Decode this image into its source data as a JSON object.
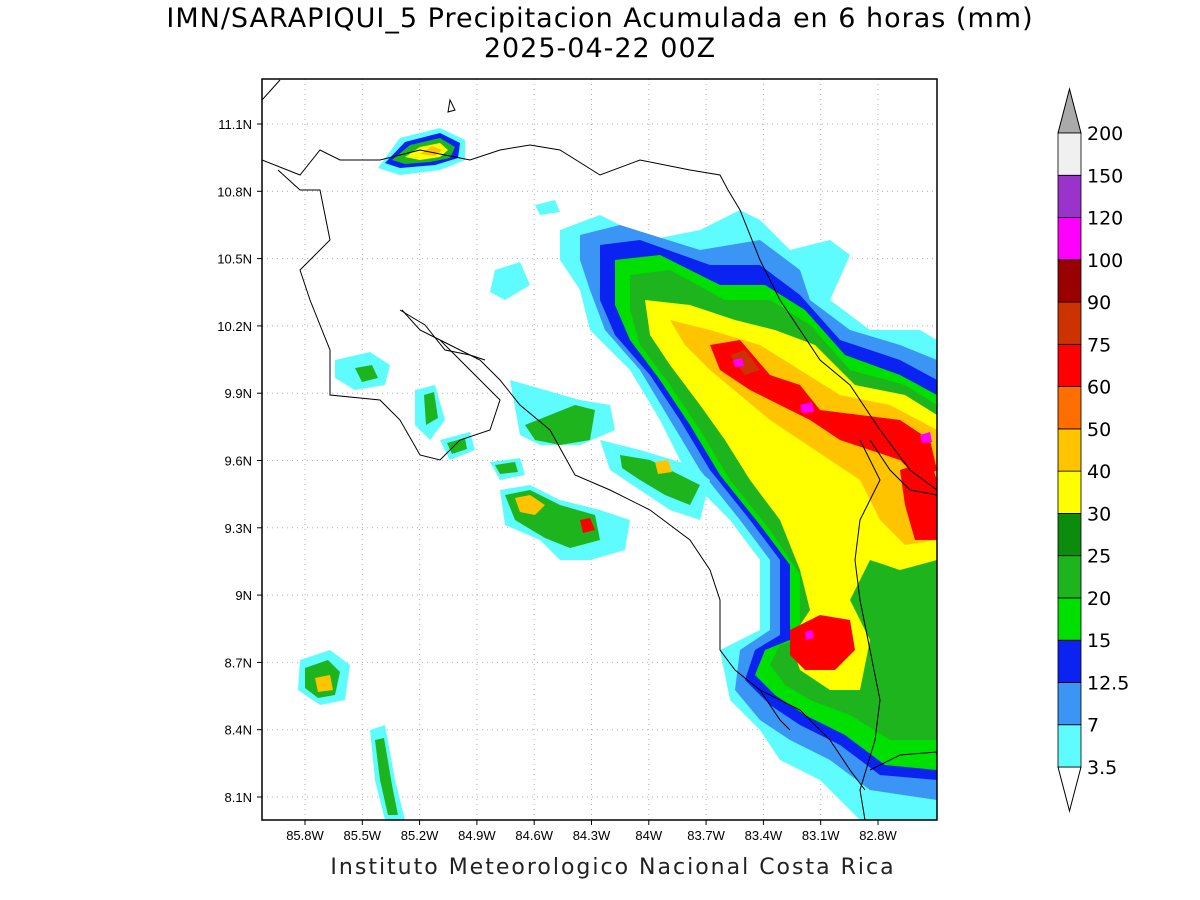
{
  "title_line1": "IMN/SARAPIQUI_5 Precipitacion Acumulada en 6 horas (mm)",
  "title_line2": "2025-04-22 00Z",
  "footer": "Instituto Meteorologico Nacional Costa Rica",
  "map": {
    "region": "Costa Rica",
    "variable": "6-hour accumulated precipitation",
    "units": "mm",
    "lat_range": [
      8.0,
      11.25
    ],
    "lon_range": [
      -85.95,
      -82.95
    ],
    "lat_ticks": [
      "11.1N",
      "10.8N",
      "10.5N",
      "10.2N",
      "9.9N",
      "9.6N",
      "9.3N",
      "9N",
      "8.7N",
      "8.4N",
      "8.1N"
    ],
    "lon_ticks": [
      "85.8W",
      "85.5W",
      "85.2W",
      "84.9W",
      "84.6W",
      "84.3W",
      "84W",
      "83.7W",
      "83.4W",
      "83.1W",
      "82.8W"
    ],
    "grid": true
  },
  "colorbar": {
    "labels": [
      "3.5",
      "7",
      "12.5",
      "15",
      "20",
      "25",
      "30",
      "40",
      "50",
      "60",
      "75",
      "90",
      "100",
      "120",
      "150",
      "200"
    ],
    "colors": [
      "#5ffcff",
      "#3a95f5",
      "#0a23f0",
      "#00e000",
      "#1eb41e",
      "#0c8c0c",
      "#ffff00",
      "#ffc400",
      "#ff6e00",
      "#ff0000",
      "#cc3300",
      "#990000",
      "#ff00ff",
      "#9933cc",
      "#f0f0f0"
    ],
    "top_arrow_color": "#aaaaaa",
    "bottom_arrow_color": "#ffffff"
  }
}
